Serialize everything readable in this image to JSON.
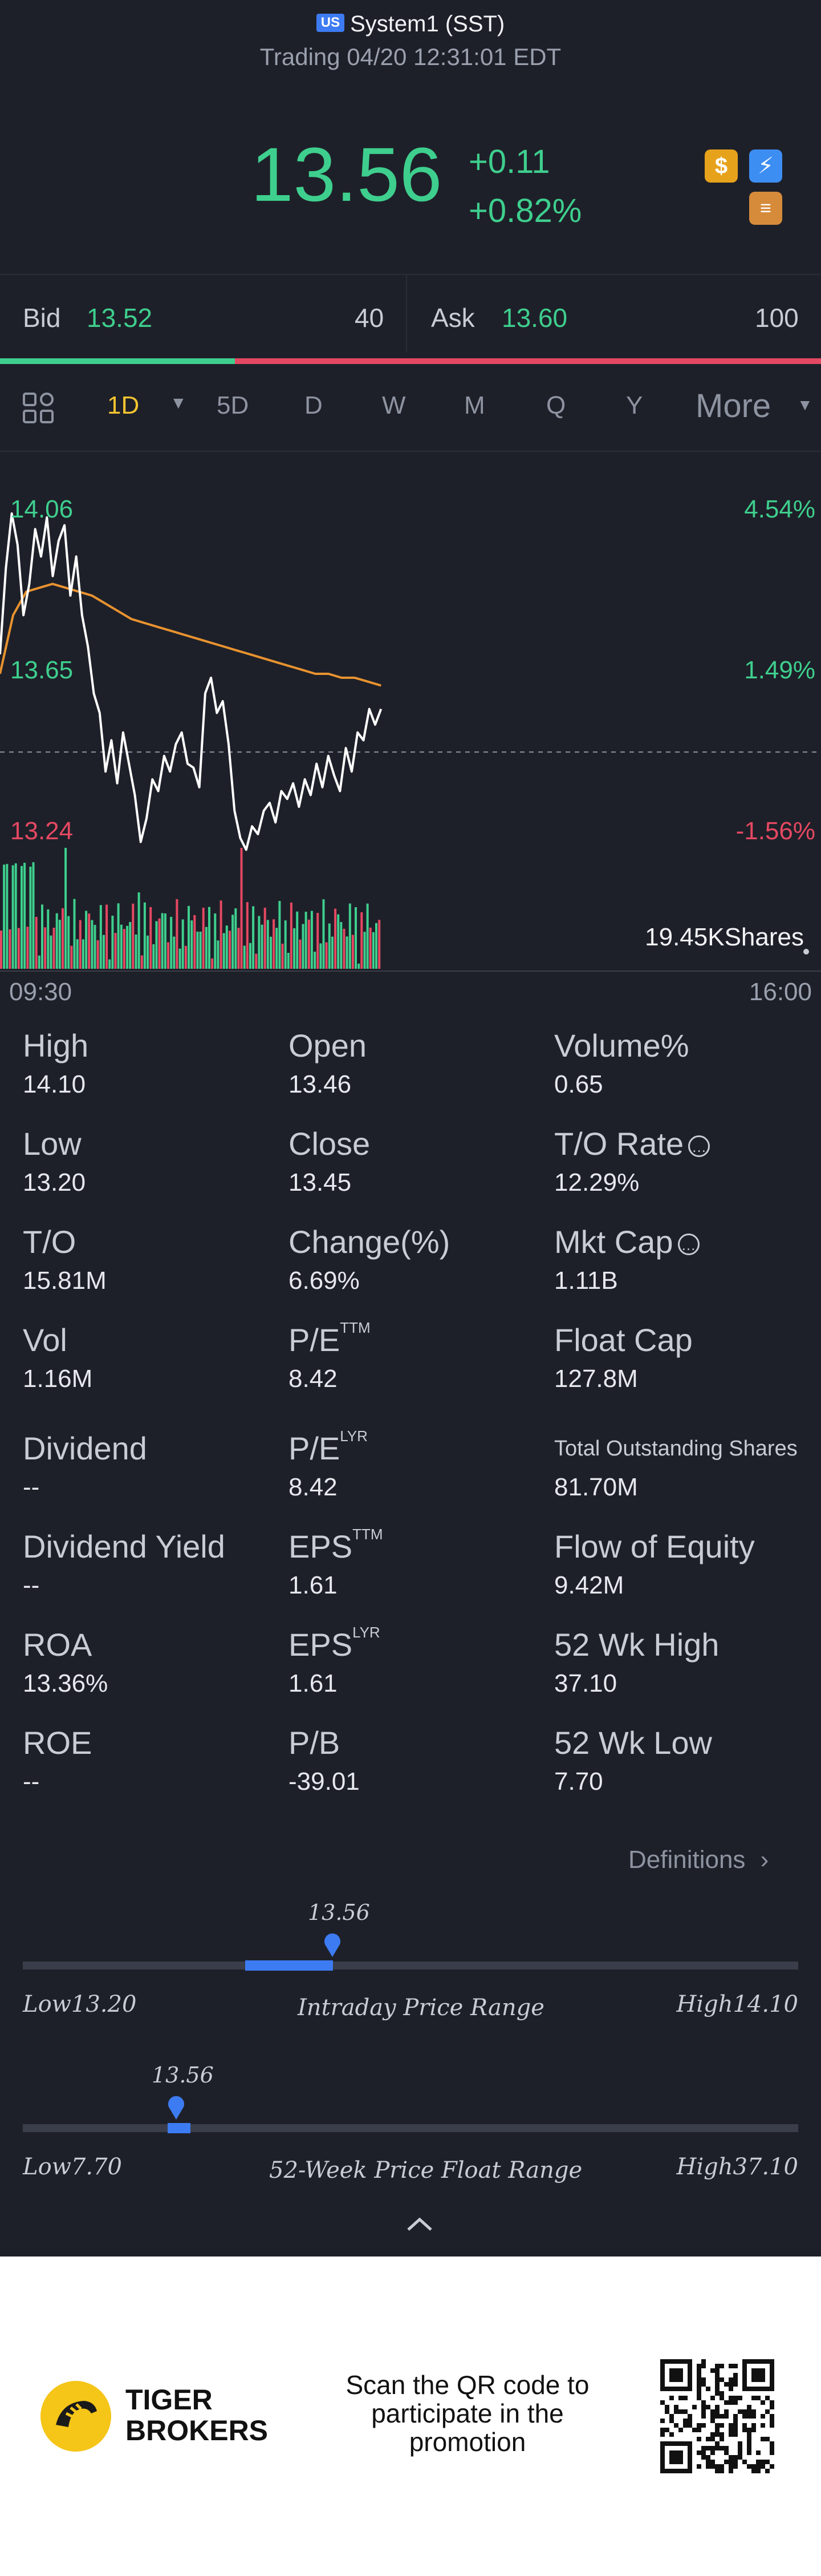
{
  "header": {
    "market_badge": "US",
    "title": "System1 (SST)",
    "status": "Trading 04/20 12:31:01 EDT",
    "price": "13.56",
    "change": "+0.11",
    "change_pct": "+0.82%",
    "icons": [
      "dollar-icon",
      "flash-icon",
      "stack-icon"
    ]
  },
  "quote": {
    "bid_label": "Bid",
    "bid_price": "13.52",
    "bid_qty": "40",
    "ask_label": "Ask",
    "ask_price": "13.60",
    "ask_qty": "100"
  },
  "tabs": {
    "items": [
      "1D",
      "5D",
      "D",
      "W",
      "M",
      "Q",
      "Y"
    ],
    "active": "1D",
    "more": "More"
  },
  "chart": {
    "y_high": "14.06",
    "y_mid": "13.65",
    "y_low": "13.24",
    "pct_high": "4.54%",
    "pct_mid": "1.49%",
    "pct_low": "-1.56%",
    "volume_label": "19.45KShares",
    "time_start": "09:30",
    "time_end": "16:00",
    "colors": {
      "price": "#ffffff",
      "avg": "#e8932f",
      "up": "#3ecf8e",
      "down": "#e54862"
    }
  },
  "chart_data": {
    "type": "line",
    "title": "",
    "xlabel": "",
    "ylabel": "",
    "ylim": [
      13.24,
      14.06
    ],
    "x_range": [
      "09:30",
      "16:00"
    ],
    "prev_close": 13.45,
    "series": [
      {
        "values": [
          13.7,
          13.92,
          14.06,
          13.98,
          13.8,
          13.88,
          14.02,
          13.95,
          14.05,
          13.9,
          13.99,
          14.03,
          13.85,
          13.95,
          13.8,
          13.72,
          13.6,
          13.55,
          13.4,
          13.48,
          13.37,
          13.5,
          13.42,
          13.34,
          13.22,
          13.28,
          13.38,
          13.35,
          13.44,
          13.4,
          13.47,
          13.5,
          13.42,
          13.41,
          13.36,
          13.6,
          13.64,
          13.55,
          13.58,
          13.47,
          13.3,
          13.23,
          13.2,
          13.26,
          13.24,
          13.3,
          13.32,
          13.27,
          13.35,
          13.33,
          13.37,
          13.31,
          13.38,
          13.34,
          13.42,
          13.36,
          13.44,
          13.39,
          13.35,
          13.46,
          13.4,
          13.5,
          13.48,
          13.56,
          13.52,
          13.56
        ]
      },
      {
        "values": [
          13.65,
          13.8,
          13.86,
          13.87,
          13.88,
          13.87,
          13.86,
          13.85,
          13.83,
          13.81,
          13.79,
          13.78,
          13.77,
          13.76,
          13.75,
          13.74,
          13.73,
          13.72,
          13.71,
          13.7,
          13.69,
          13.68,
          13.67,
          13.66,
          13.65,
          13.65,
          13.64,
          13.64,
          13.63,
          13.62
        ]
      }
    ],
    "volume_max": "19.45K"
  },
  "stats": [
    {
      "label": "High",
      "value": "14.10"
    },
    {
      "label": "Open",
      "value": "13.46"
    },
    {
      "label": "Volume%",
      "value": "0.65"
    },
    {
      "label": "Low",
      "value": "13.20"
    },
    {
      "label": "Close",
      "value": "13.45"
    },
    {
      "label": "T/O Rate",
      "value": "12.29%"
    },
    {
      "label": "T/O",
      "value": "15.81M"
    },
    {
      "label": "Change(%)",
      "value": "6.69%"
    },
    {
      "label": "Mkt Cap",
      "value": "1.11B"
    },
    {
      "label": "Vol",
      "value": "1.16M"
    },
    {
      "label": "P/E",
      "sup": "TTM",
      "value": "8.42"
    },
    {
      "label": "Float Cap",
      "value": "127.8M"
    },
    {
      "label": "Dividend",
      "value": "--"
    },
    {
      "label": "P/E",
      "sup": "LYR",
      "value": "8.42"
    },
    {
      "label": "Total Outstanding Shares",
      "value": "81.70M"
    },
    {
      "label": "Dividend Yield",
      "value": "--"
    },
    {
      "label": "EPS",
      "sup": "TTM",
      "value": "1.61"
    },
    {
      "label": "Flow of Equity",
      "value": "9.42M"
    },
    {
      "label": "ROA",
      "value": "13.36%"
    },
    {
      "label": "EPS",
      "sup": "LYR",
      "value": "1.61"
    },
    {
      "label": "52 Wk High",
      "value": "37.10"
    },
    {
      "label": "ROE",
      "value": "--"
    },
    {
      "label": "P/B",
      "value": "-39.01"
    },
    {
      "label": "52 Wk Low",
      "value": "7.70"
    }
  ],
  "definitions": "Definitions",
  "intraday_range": {
    "current": "13.56",
    "low": "Low13.20",
    "high": "High14.10",
    "title": "Intraday Price Range",
    "fill_fraction": 0.4
  },
  "week52_range": {
    "current": "13.56",
    "low": "Low7.70",
    "high": "High37.10",
    "title": "52-Week Price Float Range",
    "fill_fraction": 0.2
  },
  "footer": {
    "brand_line1": "TIGER",
    "brand_line2": "BROKERS",
    "promo": "Scan the QR code to participate in the promotion"
  }
}
